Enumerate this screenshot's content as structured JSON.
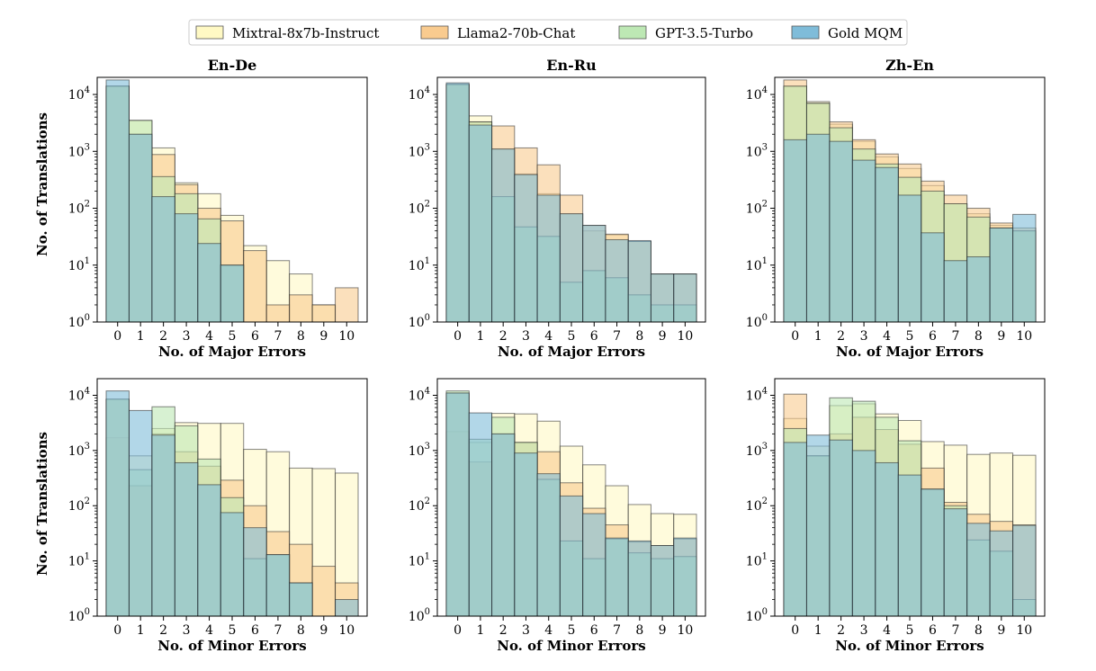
{
  "legend": [
    {
      "name": "Mixtral-8x7b-Instruct",
      "color": "#fff9c4"
    },
    {
      "name": "Llama2-70b-Chat",
      "color": "#f9cb8f"
    },
    {
      "name": "GPT-3.5-Turbo",
      "color": "#bde8b4"
    },
    {
      "name": "Gold MQM",
      "color": "#7fbcd9"
    }
  ],
  "ylabel": "No. of Translations",
  "chart_data": [
    {
      "type": "bar",
      "title": "En-De",
      "xlabel": "No. of Major Errors",
      "categories": [
        "0",
        "1",
        "2",
        "3",
        "4",
        "5",
        "6",
        "7",
        "8",
        "9",
        "10"
      ],
      "yscale": "log",
      "ylim": [
        1,
        20000
      ],
      "series": [
        {
          "name": "Mixtral-8x7b-Instruct",
          "values": [
            14000,
            3500,
            1150,
            280,
            180,
            75,
            22,
            12,
            7,
            2,
            1
          ]
        },
        {
          "name": "Llama2-70b-Chat",
          "values": [
            14000,
            2000,
            880,
            260,
            100,
            60,
            18,
            2,
            3,
            2,
            4
          ]
        },
        {
          "name": "GPT-3.5-Turbo",
          "values": [
            14000,
            3500,
            360,
            180,
            65,
            10,
            1,
            1,
            1,
            1,
            1
          ]
        },
        {
          "name": "Gold MQM",
          "values": [
            18000,
            2000,
            160,
            80,
            24,
            10,
            1,
            1,
            1,
            1,
            1
          ]
        }
      ]
    },
    {
      "type": "bar",
      "title": "En-Ru",
      "xlabel": "No. of Major Errors",
      "categories": [
        "0",
        "1",
        "2",
        "3",
        "4",
        "5",
        "6",
        "7",
        "8",
        "9",
        "10"
      ],
      "yscale": "log",
      "ylim": [
        1,
        20000
      ],
      "series": [
        {
          "name": "Mixtral-8x7b-Instruct",
          "values": [
            15000,
            4200,
            1100,
            400,
            180,
            80,
            40,
            34,
            26,
            7,
            7
          ]
        },
        {
          "name": "Llama2-70b-Chat",
          "values": [
            15000,
            3300,
            2800,
            1150,
            580,
            170,
            50,
            35,
            26,
            7,
            7
          ]
        },
        {
          "name": "GPT-3.5-Turbo",
          "values": [
            15000,
            3300,
            160,
            47,
            32,
            5,
            8,
            6,
            3,
            2,
            2
          ]
        },
        {
          "name": "Gold MQM",
          "values": [
            16000,
            2900,
            1100,
            390,
            170,
            80,
            50,
            28,
            27,
            7,
            7
          ]
        }
      ]
    },
    {
      "type": "bar",
      "title": "Zh-En",
      "xlabel": "No. of Major Errors",
      "categories": [
        "0",
        "1",
        "2",
        "3",
        "4",
        "5",
        "6",
        "7",
        "8",
        "9",
        "10"
      ],
      "yscale": "log",
      "ylim": [
        1,
        20000
      ],
      "series": [
        {
          "name": "Mixtral-8x7b-Instruct",
          "values": [
            14000,
            7500,
            3000,
            1500,
            800,
            500,
            250,
            120,
            80,
            50,
            40
          ]
        },
        {
          "name": "Llama2-70b-Chat",
          "values": [
            18000,
            7000,
            3300,
            1600,
            900,
            600,
            300,
            170,
            100,
            55,
            45
          ]
        },
        {
          "name": "GPT-3.5-Turbo",
          "values": [
            14000,
            7000,
            2600,
            1100,
            600,
            350,
            200,
            120,
            70,
            45,
            40
          ]
        },
        {
          "name": "Gold MQM",
          "values": [
            1600,
            2000,
            1500,
            700,
            520,
            170,
            37,
            12,
            14,
            45,
            78
          ]
        }
      ]
    },
    {
      "type": "bar",
      "title": "",
      "xlabel": "No. of Minor Errors",
      "categories": [
        "0",
        "1",
        "2",
        "3",
        "4",
        "5",
        "6",
        "7",
        "8",
        "9",
        "10"
      ],
      "yscale": "log",
      "ylim": [
        1,
        20000
      ],
      "series": [
        {
          "name": "Mixtral-8x7b-Instruct",
          "values": [
            1700,
            800,
            2500,
            3200,
            3100,
            3100,
            1050,
            950,
            480,
            470,
            390
          ]
        },
        {
          "name": "Llama2-70b-Chat",
          "values": [
            8500,
            230,
            2000,
            950,
            520,
            290,
            100,
            34,
            20,
            8,
            4
          ]
        },
        {
          "name": "GPT-3.5-Turbo",
          "values": [
            8500,
            450,
            6200,
            2800,
            700,
            140,
            11,
            13,
            4,
            1,
            1
          ]
        },
        {
          "name": "Gold MQM",
          "values": [
            12000,
            5300,
            1900,
            600,
            240,
            75,
            40,
            13,
            4,
            1,
            2
          ]
        }
      ]
    },
    {
      "type": "bar",
      "title": "",
      "xlabel": "No. of Minor Errors",
      "categories": [
        "0",
        "1",
        "2",
        "3",
        "4",
        "5",
        "6",
        "7",
        "8",
        "9",
        "10"
      ],
      "yscale": "log",
      "ylim": [
        1,
        20000
      ],
      "series": [
        {
          "name": "Mixtral-8x7b-Instruct",
          "values": [
            2200,
            1400,
            4700,
            4600,
            3400,
            1200,
            550,
            230,
            105,
            72,
            70
          ]
        },
        {
          "name": "Llama2-70b-Chat",
          "values": [
            11000,
            620,
            2000,
            1400,
            950,
            260,
            90,
            45,
            22,
            19,
            25
          ]
        },
        {
          "name": "GPT-3.5-Turbo",
          "values": [
            12000,
            1600,
            4000,
            1400,
            300,
            23,
            11,
            25,
            14,
            11,
            12
          ]
        },
        {
          "name": "Gold MQM",
          "values": [
            11000,
            4800,
            2000,
            900,
            380,
            150,
            72,
            26,
            23,
            19,
            26
          ]
        }
      ]
    },
    {
      "type": "bar",
      "title": "",
      "xlabel": "No. of Minor Errors",
      "categories": [
        "0",
        "1",
        "2",
        "3",
        "4",
        "5",
        "6",
        "7",
        "8",
        "9",
        "10"
      ],
      "yscale": "log",
      "ylim": [
        1,
        20000
      ],
      "series": [
        {
          "name": "Mixtral-8x7b-Instruct",
          "values": [
            3800,
            1200,
            6500,
            7000,
            4600,
            3500,
            1450,
            1250,
            850,
            900,
            820
          ]
        },
        {
          "name": "Llama2-70b-Chat",
          "values": [
            10500,
            800,
            2000,
            4000,
            2400,
            1300,
            480,
            115,
            70,
            52,
            45
          ]
        },
        {
          "name": "GPT-3.5-Turbo",
          "values": [
            2500,
            800,
            9000,
            7800,
            4000,
            1500,
            200,
            100,
            24,
            15,
            2
          ]
        },
        {
          "name": "Gold MQM",
          "values": [
            1400,
            1900,
            1550,
            1000,
            600,
            360,
            200,
            88,
            48,
            35,
            44
          ]
        }
      ]
    }
  ]
}
